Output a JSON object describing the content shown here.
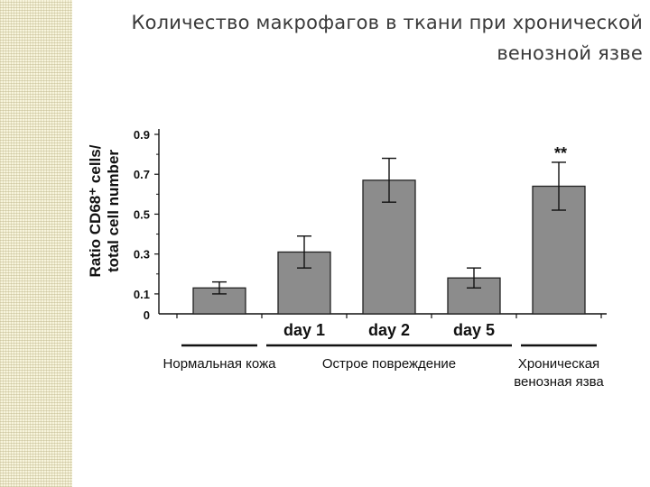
{
  "slide": {
    "title_lines": [
      "Количество макрофагов в ткани при хронической",
      "венозной язве"
    ]
  },
  "chart_data": {
    "type": "bar",
    "ylabel_lines": [
      "Ratio CD68⁺ cells/",
      "total cell number"
    ],
    "ylim": [
      0,
      0.9
    ],
    "y_ticks": [
      {
        "value": 0,
        "label": "0"
      },
      {
        "value": 0.1,
        "label": "0.1"
      },
      {
        "value": 0.3,
        "label": "0.3"
      },
      {
        "value": 0.5,
        "label": "0.5"
      },
      {
        "value": 0.7,
        "label": "0.7"
      },
      {
        "value": 0.9,
        "label": "0.9"
      }
    ],
    "categories": [
      "",
      "day 1",
      "day 2",
      "day 5",
      ""
    ],
    "values": [
      0.13,
      0.31,
      0.67,
      0.18,
      0.64
    ],
    "errors": [
      0.03,
      0.08,
      0.11,
      0.05,
      0.12
    ],
    "groups": [
      {
        "lines": [
          "Нормальная кожа"
        ],
        "from": 0,
        "to": 0
      },
      {
        "lines": [
          "Острое повреждение"
        ],
        "from": 1,
        "to": 3
      },
      {
        "lines": [
          "Хроническая",
          "венозная язва"
        ],
        "from": 4,
        "to": 4
      }
    ],
    "annotations": [
      {
        "index": 4,
        "text": "**"
      }
    ],
    "bar_color": "#8c8c8c",
    "grid": false,
    "legend": "none"
  }
}
